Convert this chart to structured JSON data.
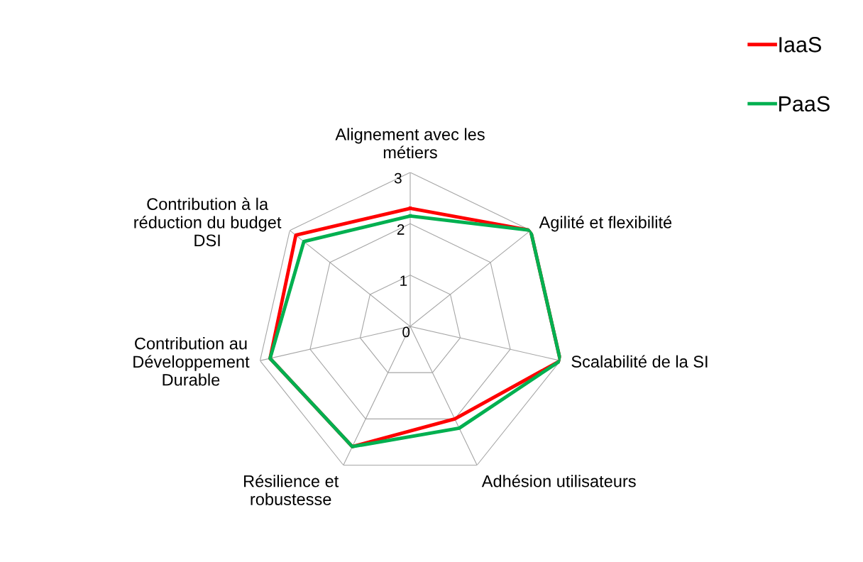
{
  "chart_data": {
    "type": "radar",
    "categories": [
      "Alignement avec les\nmétiers",
      "Agilité et flexibilité",
      "Scalabilité de la SI",
      "Adhésion utilisateurs",
      "Résilience et\nrobustesse",
      "Contribution au\nDéveloppement\nDurable",
      "Contribution à la\nréduction du budget\nDSI"
    ],
    "series": [
      {
        "name": "IaaS",
        "color": "#ff0000",
        "values": [
          2.3,
          3,
          3,
          2,
          2.6,
          2.8,
          2.85
        ]
      },
      {
        "name": "PaaS",
        "color": "#00b050",
        "values": [
          2.15,
          3,
          3,
          2.2,
          2.6,
          2.8,
          2.65
        ]
      }
    ],
    "ylim": [
      0,
      3
    ],
    "yticks": [
      0,
      1,
      2,
      3
    ],
    "grid": true,
    "legend": "top right"
  }
}
